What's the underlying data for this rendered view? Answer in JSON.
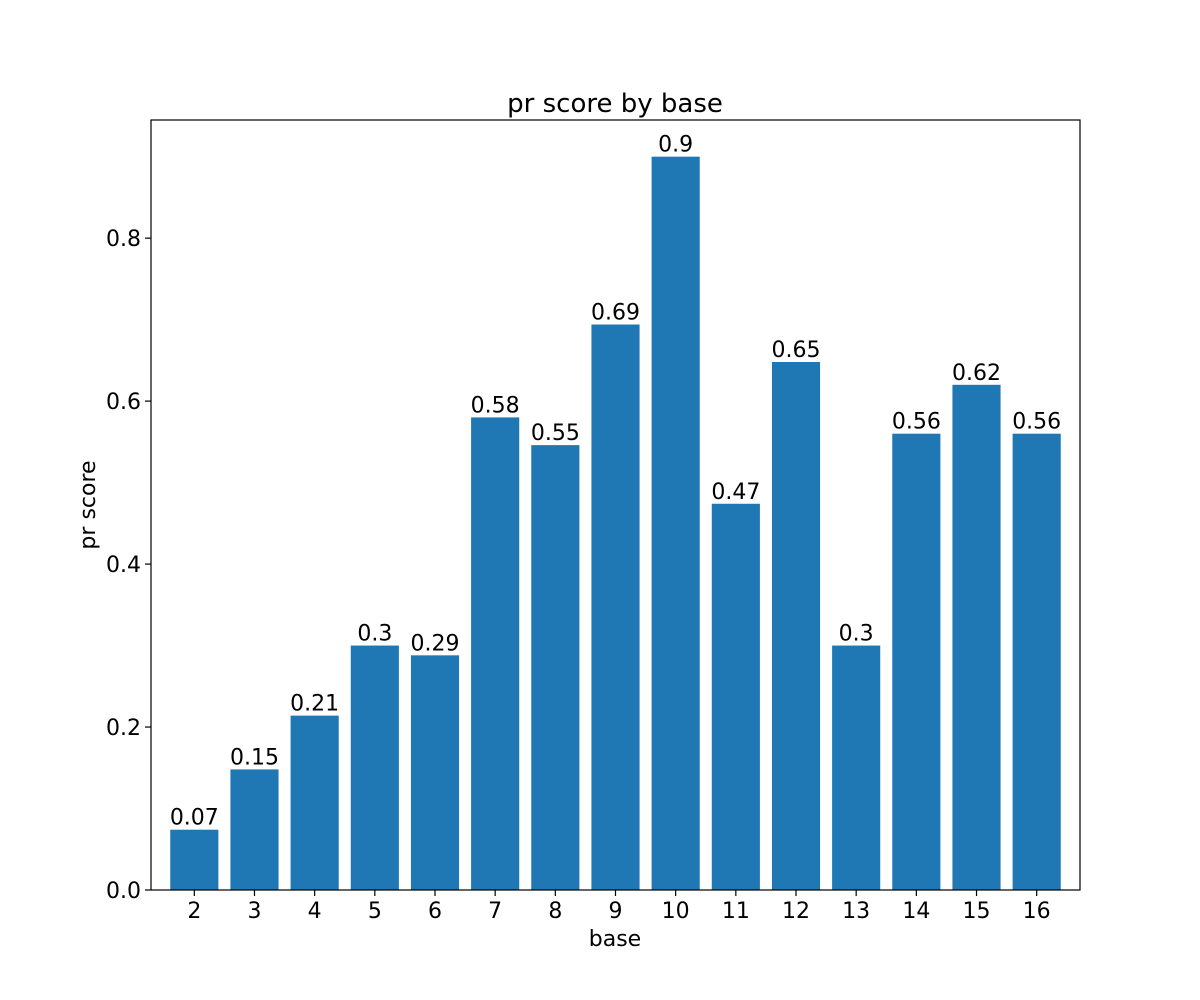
{
  "chart_data": {
    "type": "bar",
    "title": "pr score by base",
    "xlabel": "base",
    "ylabel": "pr score",
    "categories": [
      "2",
      "3",
      "4",
      "5",
      "6",
      "7",
      "8",
      "9",
      "10",
      "11",
      "12",
      "13",
      "14",
      "15",
      "16"
    ],
    "values": [
      0.074,
      0.148,
      0.214,
      0.3,
      0.288,
      0.58,
      0.546,
      0.694,
      0.9,
      0.474,
      0.648,
      0.3,
      0.56,
      0.62,
      0.56
    ],
    "data_labels": [
      "0.07",
      "0.15",
      "0.21",
      "0.3",
      "0.29",
      "0.58",
      "0.55",
      "0.69",
      "0.9",
      "0.47",
      "0.65",
      "0.3",
      "0.56",
      "0.62",
      "0.56"
    ],
    "ylim": [
      0,
      0.945
    ],
    "yticks": [
      0.0,
      0.2,
      0.4,
      0.6,
      0.8
    ],
    "ytick_labels": [
      "0.0",
      "0.2",
      "0.4",
      "0.6",
      "0.8"
    ],
    "grid": false,
    "bar_color": "#1f77b4"
  }
}
